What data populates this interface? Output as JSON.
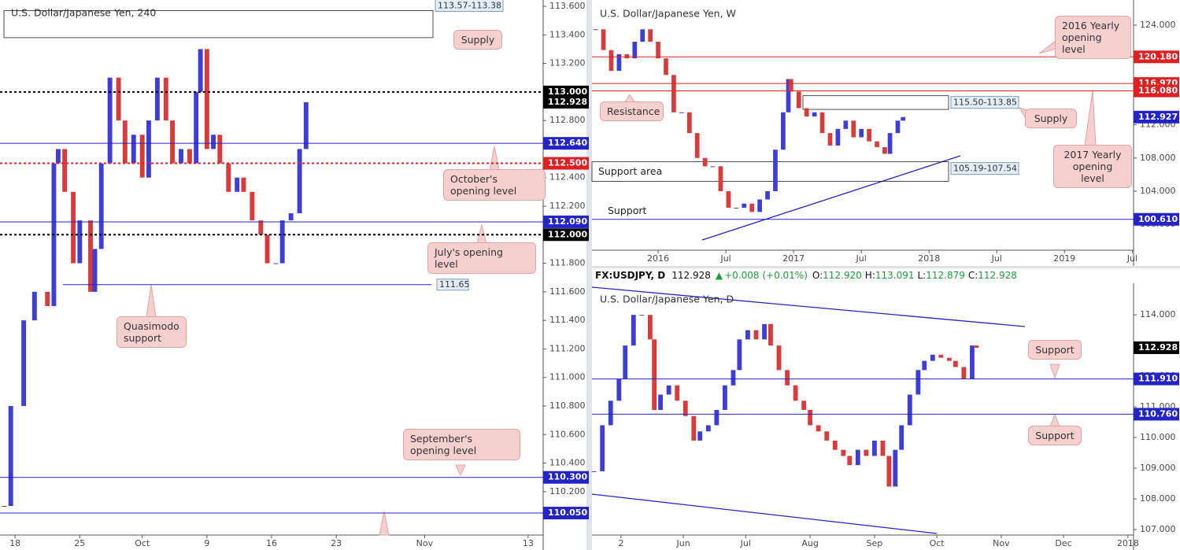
{
  "chart_data": [
    {
      "type": "candlestick",
      "title": "U.S. Dollar/Japanese Yen, 240",
      "x": [
        2,
        5,
        11,
        16,
        22,
        25,
        27,
        30,
        34,
        37,
        42,
        44,
        47,
        51,
        55,
        58,
        62,
        66,
        69,
        73,
        77,
        80,
        84,
        88,
        91,
        93,
        96,
        99,
        102,
        106,
        110,
        113,
        117,
        121,
        124,
        128,
        131,
        135,
        139,
        142
      ],
      "values": [
        110.1,
        110.8,
        111.4,
        111.6,
        111.5,
        112.5,
        112.6,
        112.3,
        111.8,
        112.1,
        111.6,
        111.9,
        112.5,
        113.1,
        112.8,
        112.5,
        112.7,
        112.4,
        112.8,
        113.1,
        112.8,
        112.5,
        112.6,
        112.5,
        113,
        113.3,
        112.6,
        112.7,
        112.5,
        112.3,
        112.4,
        112.3,
        112.1,
        112,
        111.8,
        111.8,
        112.1,
        112.15,
        112.6,
        112.928
      ],
      "up_color": "#3d3dd8",
      "down_color": "#d93b3b",
      "xlim": [
        0,
        252
      ],
      "ylim": [
        109.896,
        113.644
      ],
      "xticks": [
        {
          "value": 7,
          "label": "18"
        },
        {
          "value": 37,
          "label": "25"
        },
        {
          "value": 66,
          "label": "Oct"
        },
        {
          "value": 96,
          "label": "9"
        },
        {
          "value": 126,
          "label": "16"
        },
        {
          "value": 156,
          "label": "23"
        },
        {
          "value": 197,
          "label": "Nov"
        },
        {
          "value": 245,
          "label": "13"
        }
      ],
      "yticks": [
        {
          "value": 110.2,
          "label": "110.200"
        },
        {
          "value": 110.4,
          "label": "110.400"
        },
        {
          "value": 110.6,
          "label": "110.600"
        },
        {
          "value": 110.8,
          "label": "110.800"
        },
        {
          "value": 111,
          "label": "111.000"
        },
        {
          "value": 111.2,
          "label": "111.200"
        },
        {
          "value": 111.4,
          "label": "111.400"
        },
        {
          "value": 111.6,
          "label": "111.600"
        },
        {
          "value": 111.8,
          "label": "111.800"
        },
        {
          "value": 112.2,
          "label": "112.200"
        },
        {
          "value": 112.4,
          "label": "112.400"
        },
        {
          "value": 112.8,
          "label": "112.800"
        },
        {
          "value": 113.2,
          "label": "113.200"
        },
        {
          "value": 113.4,
          "label": "113.400"
        },
        {
          "value": 113.6,
          "label": "113.600"
        }
      ],
      "levels": [
        {
          "value": 113,
          "label": "113.000",
          "color": "#000000",
          "style": "dashed"
        },
        {
          "value": 112.928,
          "label": "112.928",
          "color": "#000000",
          "style": "none"
        },
        {
          "value": 112.64,
          "label": "112.640",
          "color": "#2323c8",
          "style": "solid"
        },
        {
          "value": 112.5,
          "label": "112.500",
          "color": "#e02020",
          "style": "dashed"
        },
        {
          "value": 112.09,
          "label": "112.090",
          "color": "#2323c8",
          "style": "solid"
        },
        {
          "value": 112,
          "label": "112.000",
          "color": "#000000",
          "style": "dashed"
        },
        {
          "value": 111.65,
          "label": "111.65",
          "color": "#2323c8",
          "style": "inside"
        },
        {
          "value": 110.3,
          "label": "110.300",
          "color": "#2323c8",
          "style": "solid"
        },
        {
          "value": 110.05,
          "label": "110.050",
          "color": "#2323c8",
          "style": "solid"
        }
      ],
      "zones": [
        {
          "low": 113.38,
          "high": 113.57,
          "label": "113.57-113.38"
        }
      ],
      "annotations": [
        "Supply",
        "October's opening level",
        "July's opening level",
        "Quasimodo support",
        "September's opening level"
      ]
    },
    {
      "type": "candlestick",
      "title": "U.S. Dollar/Japanese Yen, W",
      "x": [
        -24,
        -21,
        -18,
        -15,
        -12,
        -9,
        -6,
        -3,
        0,
        3,
        6,
        9,
        12,
        15,
        18,
        21,
        24,
        27,
        30,
        33,
        36,
        39,
        42,
        45,
        48,
        50,
        51,
        54,
        57,
        60,
        63,
        66,
        69,
        72,
        75,
        78,
        81,
        84,
        87,
        89,
        92,
        94
      ],
      "values": [
        123.5,
        121,
        118.5,
        120.5,
        120,
        122,
        123.5,
        122,
        120,
        118,
        113.5,
        113.5,
        111,
        108,
        107,
        107,
        104,
        102,
        102,
        102.5,
        101.5,
        103,
        104,
        109,
        113.5,
        117.5,
        116,
        114,
        113,
        113.5,
        111,
        109.5,
        111.5,
        112.5,
        110.5,
        111.5,
        110,
        109.3,
        108.5,
        111,
        112.5,
        112.927
      ],
      "up_color": "#3d3dd8",
      "down_color": "#d93b3b",
      "xlim": [
        -25.4,
        182.5
      ],
      "ylim": [
        96.89,
        127.03
      ],
      "xticks": [
        {
          "value": 0,
          "label": "2016"
        },
        {
          "value": 26,
          "label": "Jul"
        },
        {
          "value": 52,
          "label": "2017"
        },
        {
          "value": 78,
          "label": "Jul"
        },
        {
          "value": 104,
          "label": "2018"
        },
        {
          "value": 130,
          "label": "Jul"
        },
        {
          "value": 156,
          "label": "2019"
        },
        {
          "value": 182,
          "label": "Jul"
        }
      ],
      "yticks": [
        {
          "value": 100,
          "label": "100.000"
        },
        {
          "value": 104,
          "label": "104.000"
        },
        {
          "value": 108,
          "label": "108.000"
        },
        {
          "value": 112,
          "label": "112.000"
        },
        {
          "value": 116,
          "label": "116.000"
        },
        {
          "value": 120,
          "label": "120.000"
        },
        {
          "value": 124,
          "label": "124.000"
        }
      ],
      "levels": [
        {
          "value": 120.18,
          "label": "120.180",
          "color": "#e02020",
          "style": "solid"
        },
        {
          "value": 116.97,
          "label": "116.970",
          "color": "#e02020",
          "style": "solid"
        },
        {
          "value": 116.08,
          "label": "116.080",
          "color": "#e02020",
          "style": "solid"
        },
        {
          "value": 112.927,
          "label": "112.927",
          "color": "#2323c8",
          "style": "none"
        },
        {
          "value": 100.61,
          "label": "100.610",
          "color": "#2323c8",
          "style": "solid"
        }
      ],
      "zones": [
        {
          "low": 113.85,
          "high": 115.5,
          "label": "115.50-113.85"
        },
        {
          "low": 105.19,
          "high": 107.54,
          "label": "105.19-107.54"
        }
      ],
      "annotations": [
        "2016 Yearly opening level",
        "Resistance",
        "Supply",
        "2017 Yearly opening level",
        "Support area",
        "Support"
      ]
    },
    {
      "type": "candlestick",
      "title": "U.S. Dollar/Japanese Yen, D",
      "quote": {
        "symbol": "FX:USDJPY, D",
        "last": "112.928",
        "change": "+0.008 (+0.01%)",
        "ohlc": [
          {
            "key": "O:",
            "value": "112.920"
          },
          {
            "key": "H:",
            "value": "113.091"
          },
          {
            "key": "L:",
            "value": "112.879"
          },
          {
            "key": "C:",
            "value": "112.928"
          }
        ]
      },
      "x": [
        -43,
        -39,
        -35,
        -31,
        -28,
        -24,
        -20,
        -16,
        -14,
        -11,
        -7,
        -3,
        1,
        5,
        8,
        12,
        16,
        20,
        24,
        27,
        31,
        35,
        39,
        42,
        46,
        50,
        54,
        58,
        61,
        65,
        69,
        73,
        77,
        80,
        84,
        88,
        92,
        96,
        99,
        102,
        105,
        109,
        113,
        116,
        120,
        124,
        128,
        131,
        135,
        139,
        141
      ],
      "values": [
        108.9,
        110.4,
        111.2,
        111.9,
        113,
        114,
        114,
        113.2,
        110.9,
        111.4,
        111.7,
        111.2,
        110.7,
        109.9,
        110.2,
        110.4,
        110.9,
        111.7,
        112.2,
        113.2,
        113.5,
        113.2,
        113.7,
        113,
        112.2,
        111.7,
        111.2,
        110.9,
        110.4,
        110.2,
        109.9,
        109.6,
        109.4,
        109.1,
        109.6,
        109.4,
        109.9,
        109.4,
        108.4,
        109.6,
        110.4,
        111.4,
        112.2,
        112.5,
        112.7,
        112.6,
        112.5,
        112.3,
        111.9,
        113,
        112.928
      ],
      "up_color": "#3d3dd8",
      "down_color": "#d93b3b",
      "xlim": [
        -44,
        216.7
      ],
      "ylim": [
        106.82,
        115.03
      ],
      "xticks": [
        {
          "value": -30,
          "label": "2"
        },
        {
          "value": 0,
          "label": "Jun"
        },
        {
          "value": 30,
          "label": "Jul"
        },
        {
          "value": 61,
          "label": "Aug"
        },
        {
          "value": 92,
          "label": "Sep"
        },
        {
          "value": 122,
          "label": "Oct"
        },
        {
          "value": 153,
          "label": "Nov"
        },
        {
          "value": 183,
          "label": "Dec"
        },
        {
          "value": 214,
          "label": "2018"
        }
      ],
      "yticks": [
        {
          "value": 107,
          "label": "107.000"
        },
        {
          "value": 108,
          "label": "108.000"
        },
        {
          "value": 109,
          "label": "109.000"
        },
        {
          "value": 110,
          "label": "110.000"
        },
        {
          "value": 111,
          "label": "111.000"
        },
        {
          "value": 112,
          "label": "112.000"
        },
        {
          "value": 113,
          "label": "113.000"
        },
        {
          "value": 114,
          "label": "114.000"
        }
      ],
      "levels": [
        {
          "value": 112.928,
          "label": "112.928",
          "color": "#000000",
          "style": "none"
        },
        {
          "value": 111.91,
          "label": "111.910",
          "color": "#2323c8",
          "style": "solid"
        },
        {
          "value": 110.76,
          "label": "110.760",
          "color": "#2323c8",
          "style": "solid"
        }
      ],
      "zones": [],
      "annotations": [
        "Support",
        "Support"
      ]
    }
  ]
}
